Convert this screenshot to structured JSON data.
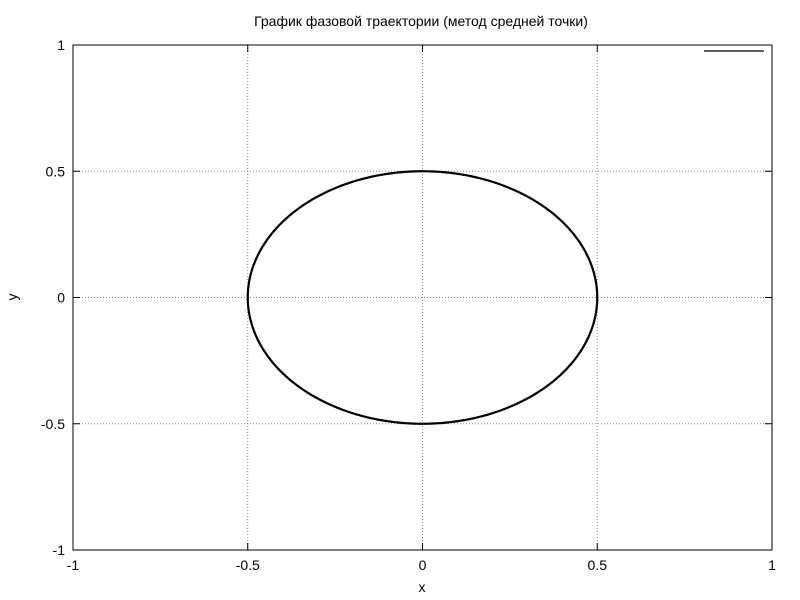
{
  "chart_data": {
    "type": "line",
    "title": "График фазовой траектории (метод средней точки)",
    "xlabel": "x",
    "ylabel": "y",
    "xlim": [
      -1,
      1
    ],
    "ylim": [
      -1,
      1
    ],
    "xticks": [
      -1,
      -0.5,
      0,
      0.5,
      1
    ],
    "yticks": [
      -1,
      -0.5,
      0,
      0.5,
      1
    ],
    "xtick_labels": [
      "-1",
      "-0.5",
      "0",
      "0.5",
      "1"
    ],
    "ytick_labels": [
      "-1",
      "-0.5",
      "0",
      "0.5",
      "1"
    ],
    "grid": true,
    "grid_style": "dotted",
    "legend": {
      "position": "top-right",
      "entries": [
        {
          "label": "",
          "color": "#000000"
        }
      ]
    },
    "series": [
      {
        "name": "",
        "color": "#000000",
        "curve": "ellipse",
        "center": [
          0,
          0
        ],
        "semi_axis_x": 0.5,
        "semi_axis_y": 0.5
      }
    ]
  }
}
